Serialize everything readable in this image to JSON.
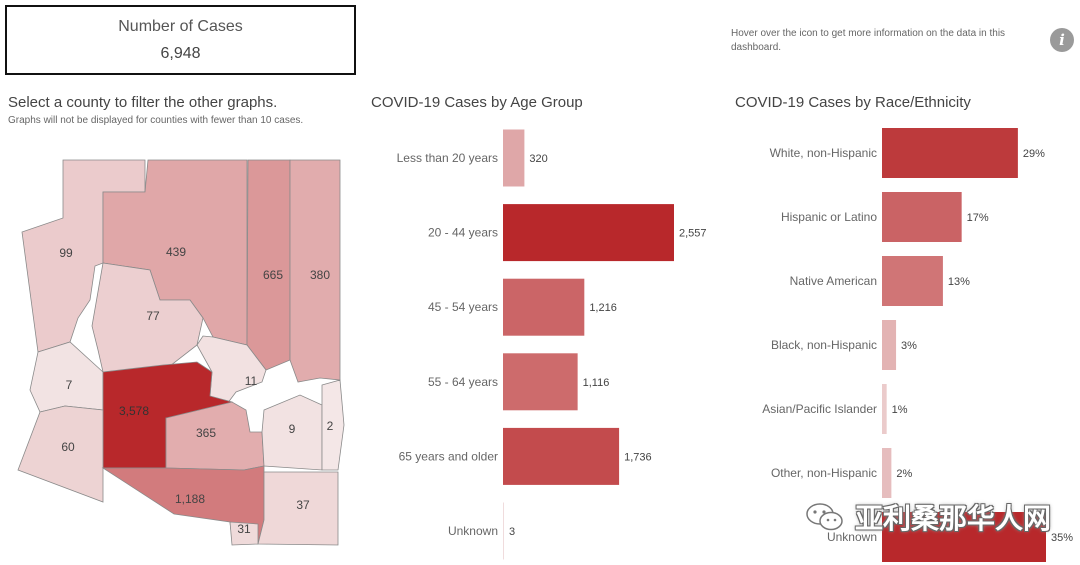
{
  "kpi": {
    "label": "Number of Cases",
    "value": "6,948"
  },
  "info": {
    "note": "Hover over the icon to get more information on the data in this dashboard.",
    "icon": "info-icon"
  },
  "map": {
    "title": "Select a county to filter the other graphs.",
    "subtitle": "Graphs will not be displayed for counties with fewer than 10 cases.",
    "counties": [
      {
        "id": "mohave",
        "label": "99",
        "cases": 99
      },
      {
        "id": "coconino",
        "label": "439",
        "cases": 439
      },
      {
        "id": "navajo",
        "label": "665",
        "cases": 665
      },
      {
        "id": "apache",
        "label": "380",
        "cases": 380
      },
      {
        "id": "yavapai",
        "label": "77",
        "cases": 77
      },
      {
        "id": "gila",
        "label": "11",
        "cases": 11
      },
      {
        "id": "la-paz",
        "label": "7",
        "cases": 7
      },
      {
        "id": "maricopa",
        "label": "3,578",
        "cases": 3578
      },
      {
        "id": "pinal",
        "label": "365",
        "cases": 365
      },
      {
        "id": "graham",
        "label": "9",
        "cases": 9
      },
      {
        "id": "greenlee",
        "label": "2",
        "cases": 2
      },
      {
        "id": "yuma",
        "label": "60",
        "cases": 60
      },
      {
        "id": "pima",
        "label": "1,188",
        "cases": 1188
      },
      {
        "id": "cochise",
        "label": "37",
        "cases": 37
      },
      {
        "id": "santa-cruz",
        "label": "31",
        "cases": 31
      }
    ]
  },
  "chart_data": [
    {
      "type": "bar",
      "orientation": "horizontal",
      "title": "COVID-19 Cases by Age Group",
      "categories": [
        "Less than 20 years",
        "20 - 44 years",
        "45 - 54 years",
        "55 - 64 years",
        "65 years and older",
        "Unknown"
      ],
      "values": [
        320,
        2557,
        1216,
        1116,
        1736,
        3
      ],
      "value_labels": [
        "320",
        "2,557",
        "1,216",
        "1,116",
        "1,736",
        "3"
      ],
      "xlim": [
        0,
        2557
      ],
      "grid": false
    },
    {
      "type": "bar",
      "orientation": "horizontal",
      "title": "COVID-19 Cases by Race/Ethnicity",
      "categories": [
        "White, non-Hispanic",
        "Hispanic or Latino",
        "Native American",
        "Black, non-Hispanic",
        "Asian/Pacific Islander",
        "Other, non-Hispanic",
        "Unknown"
      ],
      "values": [
        29,
        17,
        13,
        3,
        1,
        2,
        35
      ],
      "value_labels": [
        "29%",
        "17%",
        "13%",
        "3%",
        "1%",
        "2%",
        "35%"
      ],
      "xlim": [
        0,
        35
      ],
      "grid": false
    }
  ],
  "colors": {
    "low": "#f5ecec",
    "high": "#b8282b",
    "border": "#8a8a8a",
    "text": "#555555"
  },
  "watermark": {
    "icon": "wechat-icon",
    "text": "亚利桑那华人网"
  }
}
